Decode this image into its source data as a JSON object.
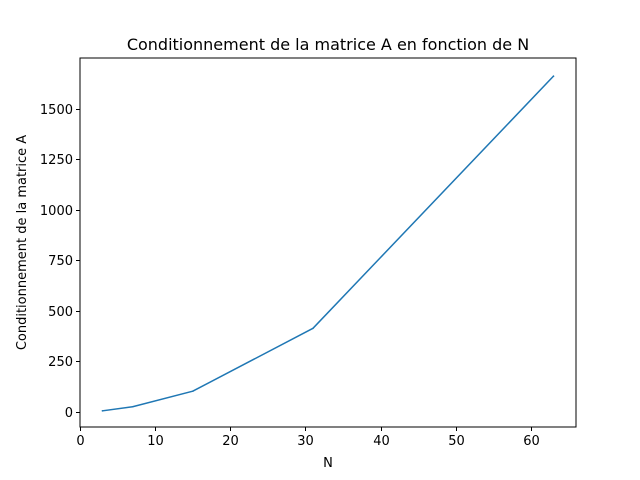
{
  "chart_data": {
    "type": "line",
    "title": "Conditionnement de la matrice A en fonction de N",
    "xlabel": "N",
    "ylabel": "Conditionnement de la matrice A",
    "xlim": [
      0,
      66
    ],
    "ylim": [
      -75,
      1750
    ],
    "xticks": [
      0,
      10,
      20,
      30,
      40,
      50,
      60
    ],
    "yticks": [
      0,
      250,
      500,
      750,
      1000,
      1250,
      1500
    ],
    "grid": false,
    "series": [
      {
        "color": "#1f77b4",
        "x": [
          3,
          7,
          15,
          31,
          63
        ],
        "y": [
          5,
          25,
          102,
          413,
          1660
        ]
      }
    ]
  }
}
